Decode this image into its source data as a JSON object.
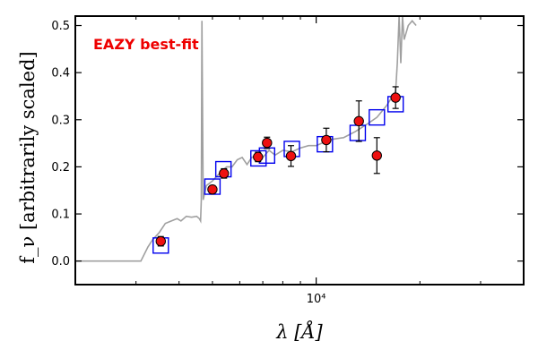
{
  "chart_data": {
    "type": "scatter",
    "title": "",
    "xlabel": "λ [Å]",
    "ylabel": "f_ν [arbitrarily scaled]",
    "x_scale": "log",
    "xlim": [
      2000,
      40000
    ],
    "ylim": [
      -0.05,
      0.52
    ],
    "y_ticks": [
      0.0,
      0.1,
      0.2,
      0.3,
      0.4,
      0.5
    ],
    "y_tick_labels": [
      "0.0",
      "0.1",
      "0.2",
      "0.3",
      "0.4",
      "0.5"
    ],
    "x_major_ticks": [
      10000
    ],
    "x_tick_labels": [
      "10⁴"
    ],
    "x_minor_ticks": [
      3000,
      4000,
      5000,
      6000,
      7000,
      8000,
      9000,
      20000,
      30000
    ],
    "grid": false,
    "annotation": {
      "text": "EAZY best-fit",
      "color": "#ee0000"
    },
    "colors": {
      "template": "#a0a0a0",
      "model_boxes": "#0000ee",
      "observed": "#ee1111",
      "errorbars": "#000000"
    },
    "series": [
      {
        "kind": "template_curve",
        "x": [
          2000,
          2700,
          3100,
          3250,
          3350,
          3500,
          3650,
          3800,
          3950,
          4050,
          4200,
          4350,
          4500,
          4580,
          4620,
          4640,
          4660,
          4700,
          4800,
          5000,
          5300,
          5500,
          5700,
          5900,
          6100,
          6300,
          6500,
          6800,
          7000,
          7300,
          7600,
          8000,
          8500,
          9000,
          9500,
          10000,
          11000,
          12000,
          13000,
          14000,
          15000,
          16000,
          16500,
          17000,
          17200,
          17400,
          17600,
          17800,
          18000,
          18500,
          19000,
          19500
        ],
        "y": [
          0.0,
          0.0,
          0.0,
          0.03,
          0.045,
          0.06,
          0.08,
          0.085,
          0.09,
          0.085,
          0.095,
          0.093,
          0.095,
          0.09,
          0.085,
          0.13,
          0.51,
          0.13,
          0.16,
          0.17,
          0.19,
          0.2,
          0.2,
          0.215,
          0.22,
          0.205,
          0.22,
          0.225,
          0.22,
          0.235,
          0.225,
          0.235,
          0.232,
          0.24,
          0.245,
          0.245,
          0.258,
          0.262,
          0.275,
          0.29,
          0.305,
          0.33,
          0.345,
          0.36,
          0.42,
          0.52,
          0.42,
          0.52,
          0.47,
          0.5,
          0.51,
          0.5
        ]
      },
      {
        "kind": "model_fluxes",
        "x": [
          3540,
          5000,
          5380,
          6800,
          7200,
          8500,
          10600,
          13200,
          15000,
          17000
        ],
        "y": [
          0.033,
          0.158,
          0.195,
          0.218,
          0.224,
          0.238,
          0.248,
          0.272,
          0.305,
          0.333
        ]
      },
      {
        "kind": "observed",
        "x": [
          3540,
          5000,
          5400,
          6780,
          7200,
          8450,
          10700,
          13300,
          15000,
          17000
        ],
        "y": [
          0.042,
          0.152,
          0.186,
          0.221,
          0.251,
          0.223,
          0.257,
          0.297,
          0.224,
          0.347
        ],
        "yerr": [
          0.01,
          0.008,
          0.01,
          0.01,
          0.012,
          0.022,
          0.025,
          0.043,
          0.038,
          0.023
        ]
      }
    ]
  }
}
